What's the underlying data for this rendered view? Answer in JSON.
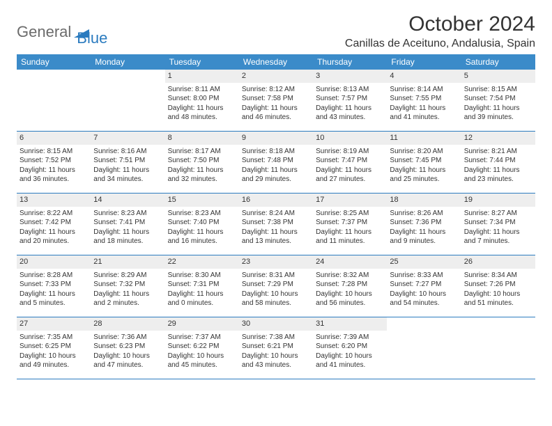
{
  "logo": {
    "general": "General",
    "blue": "Blue"
  },
  "title": "October 2024",
  "location": "Canillas de Aceituno, Andalusia, Spain",
  "colors": {
    "header_bg": "#3b8bc9",
    "header_text": "#ffffff",
    "daynum_bg": "#eeeeee",
    "border": "#2b7bbf",
    "logo_general": "#6b6b6b",
    "logo_blue": "#2b7bbf"
  },
  "weekdays": [
    "Sunday",
    "Monday",
    "Tuesday",
    "Wednesday",
    "Thursday",
    "Friday",
    "Saturday"
  ],
  "weeks": [
    [
      null,
      null,
      {
        "day": "1",
        "sunrise": "Sunrise: 8:11 AM",
        "sunset": "Sunset: 8:00 PM",
        "daylight": "Daylight: 11 hours and 48 minutes."
      },
      {
        "day": "2",
        "sunrise": "Sunrise: 8:12 AM",
        "sunset": "Sunset: 7:58 PM",
        "daylight": "Daylight: 11 hours and 46 minutes."
      },
      {
        "day": "3",
        "sunrise": "Sunrise: 8:13 AM",
        "sunset": "Sunset: 7:57 PM",
        "daylight": "Daylight: 11 hours and 43 minutes."
      },
      {
        "day": "4",
        "sunrise": "Sunrise: 8:14 AM",
        "sunset": "Sunset: 7:55 PM",
        "daylight": "Daylight: 11 hours and 41 minutes."
      },
      {
        "day": "5",
        "sunrise": "Sunrise: 8:15 AM",
        "sunset": "Sunset: 7:54 PM",
        "daylight": "Daylight: 11 hours and 39 minutes."
      }
    ],
    [
      {
        "day": "6",
        "sunrise": "Sunrise: 8:15 AM",
        "sunset": "Sunset: 7:52 PM",
        "daylight": "Daylight: 11 hours and 36 minutes."
      },
      {
        "day": "7",
        "sunrise": "Sunrise: 8:16 AM",
        "sunset": "Sunset: 7:51 PM",
        "daylight": "Daylight: 11 hours and 34 minutes."
      },
      {
        "day": "8",
        "sunrise": "Sunrise: 8:17 AM",
        "sunset": "Sunset: 7:50 PM",
        "daylight": "Daylight: 11 hours and 32 minutes."
      },
      {
        "day": "9",
        "sunrise": "Sunrise: 8:18 AM",
        "sunset": "Sunset: 7:48 PM",
        "daylight": "Daylight: 11 hours and 29 minutes."
      },
      {
        "day": "10",
        "sunrise": "Sunrise: 8:19 AM",
        "sunset": "Sunset: 7:47 PM",
        "daylight": "Daylight: 11 hours and 27 minutes."
      },
      {
        "day": "11",
        "sunrise": "Sunrise: 8:20 AM",
        "sunset": "Sunset: 7:45 PM",
        "daylight": "Daylight: 11 hours and 25 minutes."
      },
      {
        "day": "12",
        "sunrise": "Sunrise: 8:21 AM",
        "sunset": "Sunset: 7:44 PM",
        "daylight": "Daylight: 11 hours and 23 minutes."
      }
    ],
    [
      {
        "day": "13",
        "sunrise": "Sunrise: 8:22 AM",
        "sunset": "Sunset: 7:42 PM",
        "daylight": "Daylight: 11 hours and 20 minutes."
      },
      {
        "day": "14",
        "sunrise": "Sunrise: 8:23 AM",
        "sunset": "Sunset: 7:41 PM",
        "daylight": "Daylight: 11 hours and 18 minutes."
      },
      {
        "day": "15",
        "sunrise": "Sunrise: 8:23 AM",
        "sunset": "Sunset: 7:40 PM",
        "daylight": "Daylight: 11 hours and 16 minutes."
      },
      {
        "day": "16",
        "sunrise": "Sunrise: 8:24 AM",
        "sunset": "Sunset: 7:38 PM",
        "daylight": "Daylight: 11 hours and 13 minutes."
      },
      {
        "day": "17",
        "sunrise": "Sunrise: 8:25 AM",
        "sunset": "Sunset: 7:37 PM",
        "daylight": "Daylight: 11 hours and 11 minutes."
      },
      {
        "day": "18",
        "sunrise": "Sunrise: 8:26 AM",
        "sunset": "Sunset: 7:36 PM",
        "daylight": "Daylight: 11 hours and 9 minutes."
      },
      {
        "day": "19",
        "sunrise": "Sunrise: 8:27 AM",
        "sunset": "Sunset: 7:34 PM",
        "daylight": "Daylight: 11 hours and 7 minutes."
      }
    ],
    [
      {
        "day": "20",
        "sunrise": "Sunrise: 8:28 AM",
        "sunset": "Sunset: 7:33 PM",
        "daylight": "Daylight: 11 hours and 5 minutes."
      },
      {
        "day": "21",
        "sunrise": "Sunrise: 8:29 AM",
        "sunset": "Sunset: 7:32 PM",
        "daylight": "Daylight: 11 hours and 2 minutes."
      },
      {
        "day": "22",
        "sunrise": "Sunrise: 8:30 AM",
        "sunset": "Sunset: 7:31 PM",
        "daylight": "Daylight: 11 hours and 0 minutes."
      },
      {
        "day": "23",
        "sunrise": "Sunrise: 8:31 AM",
        "sunset": "Sunset: 7:29 PM",
        "daylight": "Daylight: 10 hours and 58 minutes."
      },
      {
        "day": "24",
        "sunrise": "Sunrise: 8:32 AM",
        "sunset": "Sunset: 7:28 PM",
        "daylight": "Daylight: 10 hours and 56 minutes."
      },
      {
        "day": "25",
        "sunrise": "Sunrise: 8:33 AM",
        "sunset": "Sunset: 7:27 PM",
        "daylight": "Daylight: 10 hours and 54 minutes."
      },
      {
        "day": "26",
        "sunrise": "Sunrise: 8:34 AM",
        "sunset": "Sunset: 7:26 PM",
        "daylight": "Daylight: 10 hours and 51 minutes."
      }
    ],
    [
      {
        "day": "27",
        "sunrise": "Sunrise: 7:35 AM",
        "sunset": "Sunset: 6:25 PM",
        "daylight": "Daylight: 10 hours and 49 minutes."
      },
      {
        "day": "28",
        "sunrise": "Sunrise: 7:36 AM",
        "sunset": "Sunset: 6:23 PM",
        "daylight": "Daylight: 10 hours and 47 minutes."
      },
      {
        "day": "29",
        "sunrise": "Sunrise: 7:37 AM",
        "sunset": "Sunset: 6:22 PM",
        "daylight": "Daylight: 10 hours and 45 minutes."
      },
      {
        "day": "30",
        "sunrise": "Sunrise: 7:38 AM",
        "sunset": "Sunset: 6:21 PM",
        "daylight": "Daylight: 10 hours and 43 minutes."
      },
      {
        "day": "31",
        "sunrise": "Sunrise: 7:39 AM",
        "sunset": "Sunset: 6:20 PM",
        "daylight": "Daylight: 10 hours and 41 minutes."
      },
      null,
      null
    ]
  ]
}
